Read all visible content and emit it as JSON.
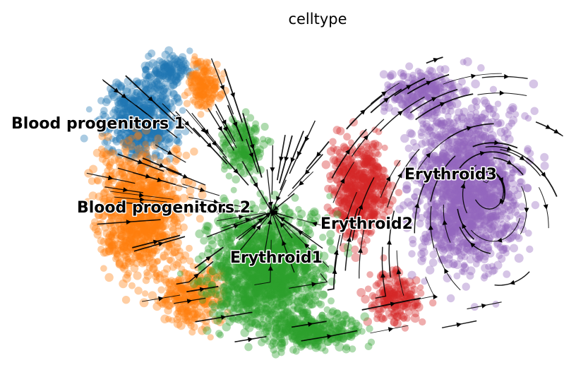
{
  "chart_data": {
    "type": "scatter",
    "title": "celltype",
    "xlabel": "",
    "ylabel": "",
    "axes_visible": false,
    "grid": false,
    "legend": "on data",
    "overlay": "velocity streamlines (black arrows)",
    "series": [
      {
        "name": "Blood progenitors 1",
        "color": "#1f77b4"
      },
      {
        "name": "Blood progenitors 2",
        "color": "#ff7f0e"
      },
      {
        "name": "Erythroid1",
        "color": "#2ca02c"
      },
      {
        "name": "Erythroid2",
        "color": "#d62728"
      },
      {
        "name": "Erythroid3",
        "color": "#9467bd"
      }
    ]
  }
}
